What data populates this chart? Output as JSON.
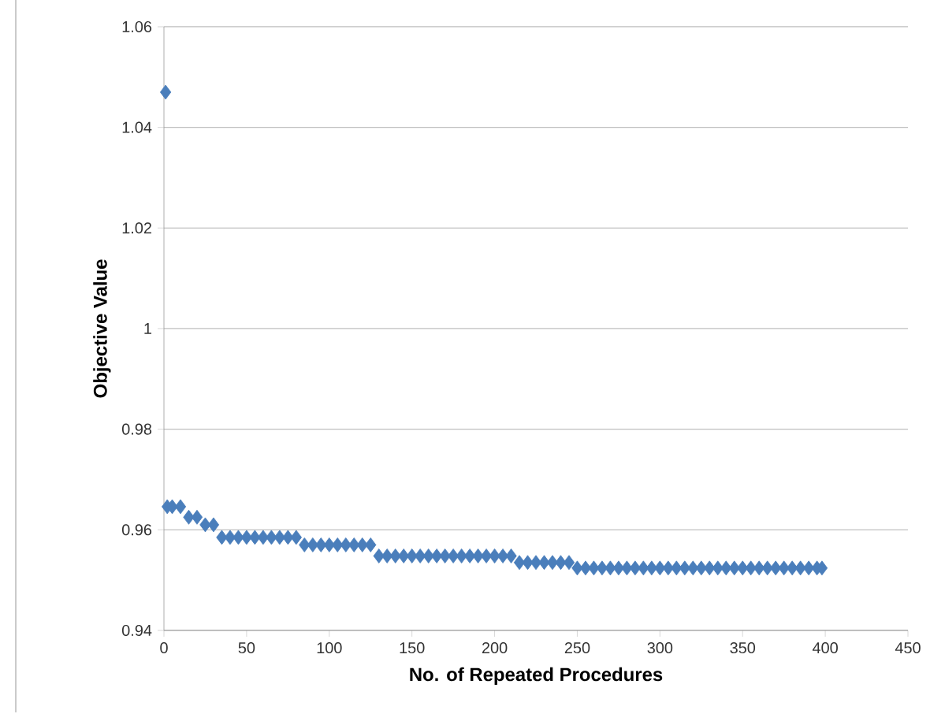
{
  "chart_data": {
    "type": "scatter",
    "xlabel": "No. of Repeated Procedures",
    "ylabel": "Objective Value",
    "x": [
      1,
      2,
      5,
      10,
      15,
      20,
      25,
      30,
      35,
      40,
      45,
      50,
      55,
      60,
      65,
      70,
      75,
      80,
      85,
      90,
      95,
      100,
      105,
      110,
      115,
      120,
      125,
      130,
      135,
      140,
      145,
      150,
      155,
      160,
      165,
      170,
      175,
      180,
      185,
      190,
      195,
      200,
      205,
      210,
      215,
      220,
      225,
      230,
      235,
      240,
      245,
      250,
      255,
      260,
      265,
      270,
      275,
      280,
      285,
      290,
      295,
      300,
      305,
      310,
      315,
      320,
      325,
      330,
      335,
      340,
      345,
      350,
      355,
      360,
      365,
      370,
      375,
      380,
      385,
      390,
      395,
      398
    ],
    "values": [
      1.047,
      0.9646,
      0.9646,
      0.9646,
      0.9625,
      0.9625,
      0.961,
      0.961,
      0.9585,
      0.9585,
      0.9585,
      0.9585,
      0.9585,
      0.9585,
      0.9585,
      0.9585,
      0.9585,
      0.9585,
      0.957,
      0.957,
      0.957,
      0.957,
      0.957,
      0.957,
      0.957,
      0.957,
      0.957,
      0.9548,
      0.9548,
      0.9548,
      0.9548,
      0.9548,
      0.9548,
      0.9548,
      0.9548,
      0.9548,
      0.9548,
      0.9548,
      0.9548,
      0.9548,
      0.9548,
      0.9548,
      0.9548,
      0.9548,
      0.9535,
      0.9535,
      0.9535,
      0.9535,
      0.9535,
      0.9535,
      0.9535,
      0.9524,
      0.9524,
      0.9524,
      0.9524,
      0.9524,
      0.9524,
      0.9524,
      0.9524,
      0.9524,
      0.9524,
      0.9524,
      0.9524,
      0.9524,
      0.9524,
      0.9524,
      0.9524,
      0.9524,
      0.9524,
      0.9524,
      0.9524,
      0.9524,
      0.9524,
      0.9524,
      0.9524,
      0.9524,
      0.9524,
      0.9524,
      0.9524,
      0.9524,
      0.9524,
      0.9524
    ],
    "color": "#4a7ebb",
    "marker": "diamond",
    "grid": "y",
    "xlim": [
      0,
      450
    ],
    "xticks": [
      0,
      50,
      100,
      150,
      200,
      250,
      300,
      350,
      400,
      450
    ],
    "ylim": [
      0.94,
      1.06
    ],
    "yticks": [
      {
        "value": 0.94,
        "label": "0.94"
      },
      {
        "value": 0.96,
        "label": "0.96"
      },
      {
        "value": 0.98,
        "label": "0.98"
      },
      {
        "value": 1,
        "label": "1"
      },
      {
        "value": 1.02,
        "label": "1.02"
      },
      {
        "value": 1.04,
        "label": "1.04"
      },
      {
        "value": 1.06,
        "label": "1.06"
      }
    ]
  }
}
